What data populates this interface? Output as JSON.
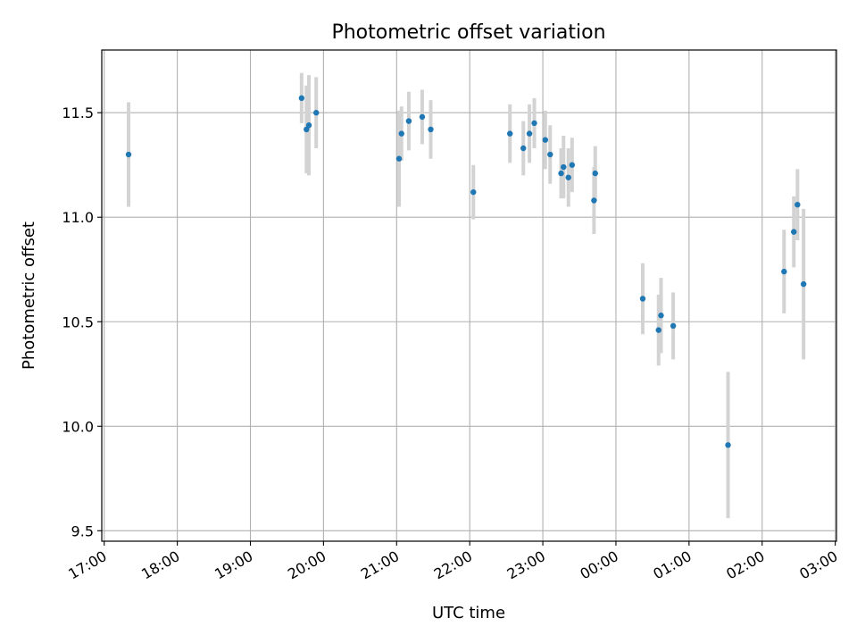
{
  "chart_data": {
    "type": "scatter",
    "title": "Photometric offset variation",
    "xlabel": "UTC time",
    "ylabel": "Photometric offset",
    "grid": true,
    "legend": "none",
    "colors": {
      "marker": "#1f77b4",
      "errorbar": "#d3d3d3",
      "grid": "#b0b0b0"
    },
    "xlim": [
      "16:58",
      "03:01 (+1 day)"
    ],
    "ylim": [
      9.45,
      11.8
    ],
    "x_ticks": [
      "17:00",
      "18:00",
      "19:00",
      "20:00",
      "21:00",
      "22:00",
      "23:00",
      "00:00",
      "01:00",
      "02:00",
      "03:00"
    ],
    "y_ticks": [
      "9.5",
      "10.0",
      "10.5",
      "11.0",
      "11.5"
    ],
    "series": [
      {
        "points": [
          {
            "x": "17:20",
            "y": 11.3,
            "yerr": 0.25
          },
          {
            "x": "19:42",
            "y": 11.57,
            "yerr": 0.12
          },
          {
            "x": "19:46",
            "y": 11.42,
            "yerr": 0.21
          },
          {
            "x": "19:48",
            "y": 11.44,
            "yerr": 0.24
          },
          {
            "x": "19:54",
            "y": 11.5,
            "yerr": 0.17
          },
          {
            "x": "21:02",
            "y": 11.28,
            "yerr": 0.23
          },
          {
            "x": "21:04",
            "y": 11.4,
            "yerr": 0.13
          },
          {
            "x": "21:10",
            "y": 11.46,
            "yerr": 0.14
          },
          {
            "x": "21:21",
            "y": 11.48,
            "yerr": 0.13
          },
          {
            "x": "21:28",
            "y": 11.42,
            "yerr": 0.14
          },
          {
            "x": "22:03",
            "y": 11.12,
            "yerr": 0.13
          },
          {
            "x": "22:33",
            "y": 11.4,
            "yerr": 0.14
          },
          {
            "x": "22:44",
            "y": 11.33,
            "yerr": 0.13
          },
          {
            "x": "22:49",
            "y": 11.4,
            "yerr": 0.14
          },
          {
            "x": "22:53",
            "y": 11.45,
            "yerr": 0.12
          },
          {
            "x": "23:02",
            "y": 11.37,
            "yerr": 0.14
          },
          {
            "x": "23:06",
            "y": 11.3,
            "yerr": 0.14
          },
          {
            "x": "23:15",
            "y": 11.21,
            "yerr": 0.12
          },
          {
            "x": "23:17",
            "y": 11.24,
            "yerr": 0.15
          },
          {
            "x": "23:21",
            "y": 11.19,
            "yerr": 0.14
          },
          {
            "x": "23:24",
            "y": 11.25,
            "yerr": 0.13
          },
          {
            "x": "23:42",
            "y": 11.08,
            "yerr": 0.16
          },
          {
            "x": "23:43",
            "y": 11.21,
            "yerr": 0.13
          },
          {
            "x": "00:22",
            "y": 10.61,
            "yerr": 0.17
          },
          {
            "x": "00:35",
            "y": 10.46,
            "yerr": 0.17
          },
          {
            "x": "00:37",
            "y": 10.53,
            "yerr": 0.18
          },
          {
            "x": "00:47",
            "y": 10.48,
            "yerr": 0.16
          },
          {
            "x": "01:32",
            "y": 9.91,
            "yerr": 0.35
          },
          {
            "x": "02:18",
            "y": 10.74,
            "yerr": 0.2
          },
          {
            "x": "02:26",
            "y": 10.93,
            "yerr": 0.17
          },
          {
            "x": "02:29",
            "y": 11.06,
            "yerr": 0.17
          },
          {
            "x": "02:34",
            "y": 10.68,
            "yerr": 0.36
          }
        ]
      }
    ]
  }
}
